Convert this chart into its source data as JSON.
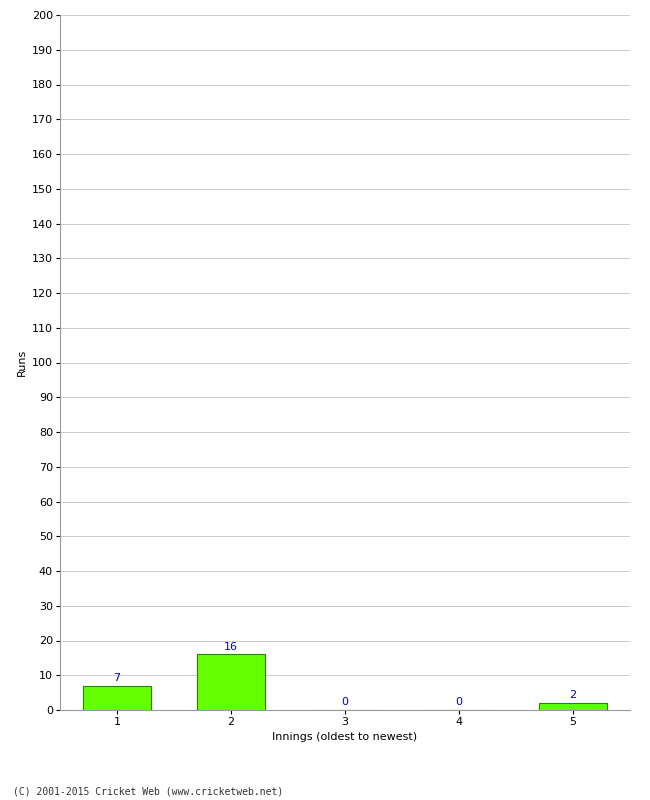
{
  "categories": [
    1,
    2,
    3,
    4,
    5
  ],
  "values": [
    7,
    16,
    0,
    0,
    2
  ],
  "bar_color": "#66ff00",
  "bar_edge_color": "#228800",
  "annotation_color": "#0000cc",
  "ylabel": "Runs",
  "xlabel": "Innings (oldest to newest)",
  "ylim": [
    0,
    200
  ],
  "yticks": [
    0,
    10,
    20,
    30,
    40,
    50,
    60,
    70,
    80,
    90,
    100,
    110,
    120,
    130,
    140,
    150,
    160,
    170,
    180,
    190,
    200
  ],
  "footer": "(C) 2001-2015 Cricket Web (www.cricketweb.net)",
  "background_color": "#ffffff",
  "grid_color": "#cccccc",
  "annotation_fontsize": 8,
  "axis_label_fontsize": 8,
  "tick_fontsize": 8,
  "bar_width": 0.6
}
